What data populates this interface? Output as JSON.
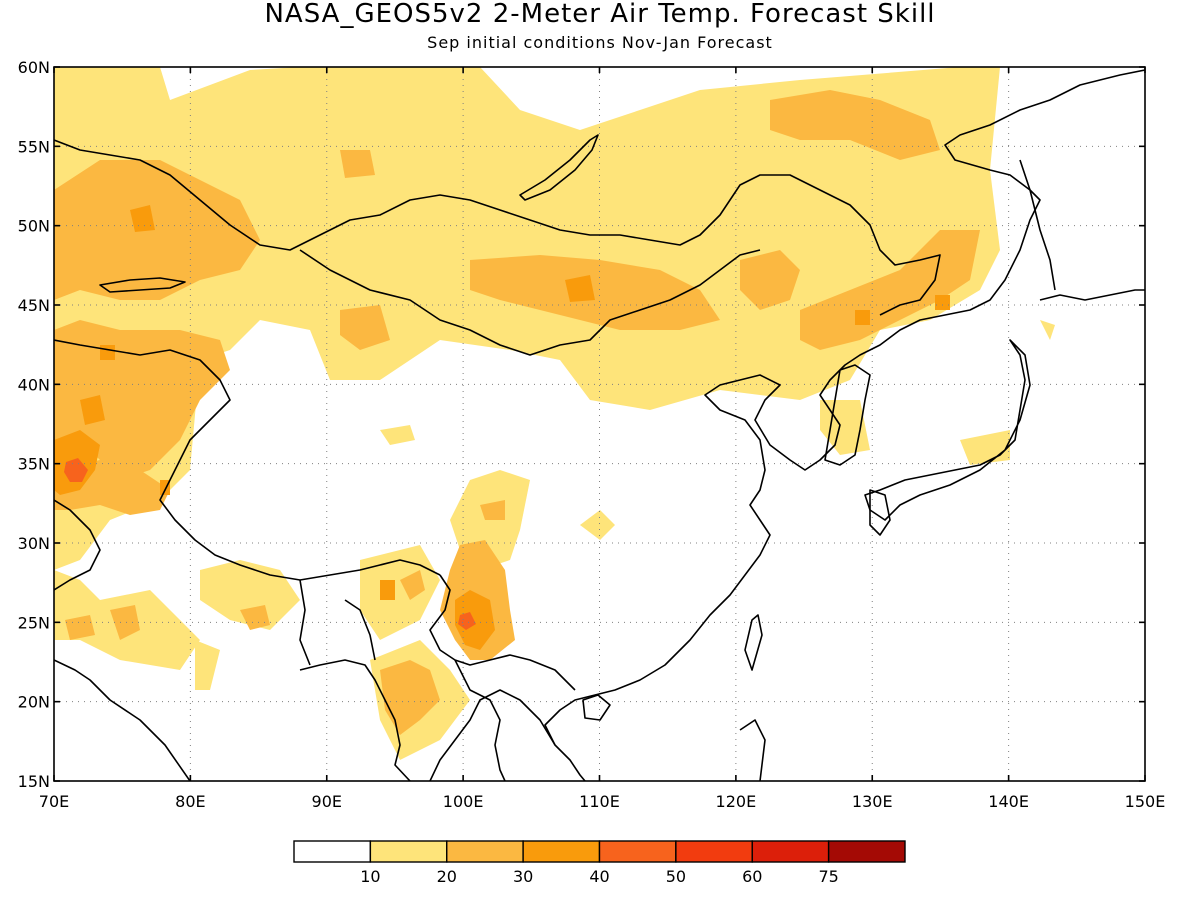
{
  "title": "NASA_GEOS5v2 2-Meter Air Temp. Forecast Skill",
  "subtitle": "Sep initial conditions  Nov-Jan Forecast",
  "axes": {
    "lon_labels": [
      "70E",
      "80E",
      "90E",
      "100E",
      "110E",
      "120E",
      "130E",
      "140E",
      "150E"
    ],
    "lat_labels": [
      "15N",
      "20N",
      "25N",
      "30N",
      "35N",
      "40N",
      "45N",
      "50N",
      "55N",
      "60N"
    ],
    "lon_range": [
      70,
      150
    ],
    "lat_range": [
      15,
      60
    ],
    "grid": "dotted"
  },
  "legend": {
    "colors": [
      "#ffffff",
      "#fee47a",
      "#fbb841",
      "#f99b0c",
      "#f7631d",
      "#f23c0f",
      "#dc1f0a",
      "#a40a05"
    ],
    "labels": [
      "10",
      "20",
      "30",
      "40",
      "50",
      "60",
      "75"
    ]
  },
  "colors": {
    "level_10_20": "#fee47a",
    "level_20_30": "#fbb841",
    "level_30_40": "#f99b0c",
    "level_40_50": "#f7631d"
  }
}
